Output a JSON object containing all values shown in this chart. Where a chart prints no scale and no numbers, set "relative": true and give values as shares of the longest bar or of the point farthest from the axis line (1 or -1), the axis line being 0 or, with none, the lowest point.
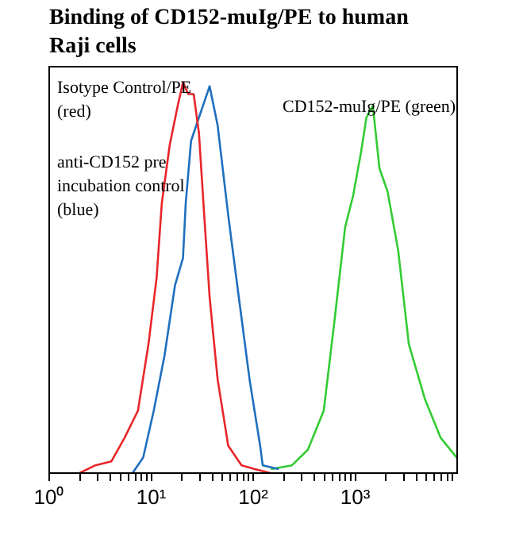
{
  "chart_data": {
    "type": "line",
    "title": "Binding of CD152-muIg/PE to human Raji cells",
    "relative": true,
    "log": "x",
    "grid": false,
    "legend": false,
    "marker": "none",
    "line_style": "solid",
    "xlim": [
      1,
      10000
    ],
    "xticks": [
      {
        "value": 1,
        "label": "10⁰"
      },
      {
        "value": 2,
        "label": null
      },
      {
        "value": 3,
        "label": null
      },
      {
        "value": 4,
        "label": null
      },
      {
        "value": 5,
        "label": null
      },
      {
        "value": 6,
        "label": null
      },
      {
        "value": 7,
        "label": null
      },
      {
        "value": 8,
        "label": null
      },
      {
        "value": 9,
        "label": null
      },
      {
        "value": 10,
        "label": "10¹"
      },
      {
        "value": 20,
        "label": null
      },
      {
        "value": 30,
        "label": null
      },
      {
        "value": 40,
        "label": null
      },
      {
        "value": 50,
        "label": null
      },
      {
        "value": 60,
        "label": null
      },
      {
        "value": 70,
        "label": null
      },
      {
        "value": 80,
        "label": null
      },
      {
        "value": 90,
        "label": null
      },
      {
        "value": 100,
        "label": "10²"
      },
      {
        "value": 200,
        "label": null
      },
      {
        "value": 300,
        "label": null
      },
      {
        "value": 400,
        "label": null
      },
      {
        "value": 500,
        "label": null
      },
      {
        "value": 600,
        "label": null
      },
      {
        "value": 700,
        "label": null
      },
      {
        "value": 800,
        "label": null
      },
      {
        "value": 900,
        "label": null
      },
      {
        "value": 1000,
        "label": "10³"
      },
      {
        "value": 2000,
        "label": null
      },
      {
        "value": 3000,
        "label": null
      },
      {
        "value": 4000,
        "label": null
      },
      {
        "value": 5000,
        "label": null
      },
      {
        "value": 6000,
        "label": null
      },
      {
        "value": 7000,
        "label": null
      },
      {
        "value": 8000,
        "label": null
      },
      {
        "value": 9000,
        "label": null
      }
    ],
    "series": [
      {
        "name": "Isotype Control/PE (red)",
        "color": "#e8262a",
        "x": [
          1.98,
          2.84,
          4.07,
          5.48,
          7.42,
          9.4,
          11.3,
          12.7,
          15.2,
          18.2,
          20.5,
          23.1,
          26.1,
          29.4,
          33.1,
          37.4,
          44.8,
          56.9,
          76.9,
          104,
          148
        ],
        "values": [
          0,
          0.02,
          0.03,
          0.09,
          0.16,
          0.33,
          0.5,
          0.69,
          0.84,
          0.94,
          1,
          0.97,
          0.97,
          0.87,
          0.66,
          0.45,
          0.24,
          0.07,
          0.02,
          0.01,
          0
        ]
      },
      {
        "name": "anti-CD152 pre incubation control (blue)",
        "color": "#1f6fbf",
        "x": [
          6.56,
          8.35,
          10.6,
          13.5,
          17.1,
          20.5,
          21.8,
          24.6,
          29.4,
          37.4,
          44.8,
          56.9,
          72.3,
          92.1,
          117,
          124,
          178
        ],
        "values": [
          0,
          0.04,
          0.16,
          0.3,
          0.48,
          0.55,
          0.69,
          0.85,
          0.91,
          0.99,
          0.89,
          0.66,
          0.45,
          0.24,
          0.07,
          0.02,
          0.01
        ]
      },
      {
        "name": "CD152-muIg/PE (green)",
        "color": "#33cc33",
        "x": [
          149,
          240,
          344,
          492,
          627,
          798,
          955,
          1140,
          1290,
          1490,
          1730,
          2080,
          2640,
          3360,
          4820,
          6900,
          9890
        ],
        "values": [
          0.01,
          0.02,
          0.06,
          0.16,
          0.39,
          0.63,
          0.71,
          0.82,
          0.91,
          0.94,
          0.78,
          0.72,
          0.57,
          0.33,
          0.19,
          0.09,
          0.04
        ]
      }
    ]
  }
}
